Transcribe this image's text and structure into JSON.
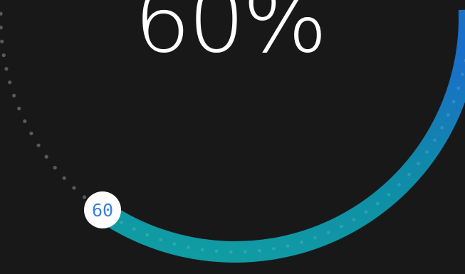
{
  "gauge": {
    "value": 60,
    "percent_text": "60%",
    "knob_label": "60",
    "colors": {
      "background": "#181818",
      "track_dots": "#5a5a5a",
      "arc_start": "#109ea2",
      "arc_end": "#1a6fc8",
      "text": "#ffffff",
      "knob_fill": "#ffffff",
      "knob_text": "#3d7fe0"
    }
  }
}
